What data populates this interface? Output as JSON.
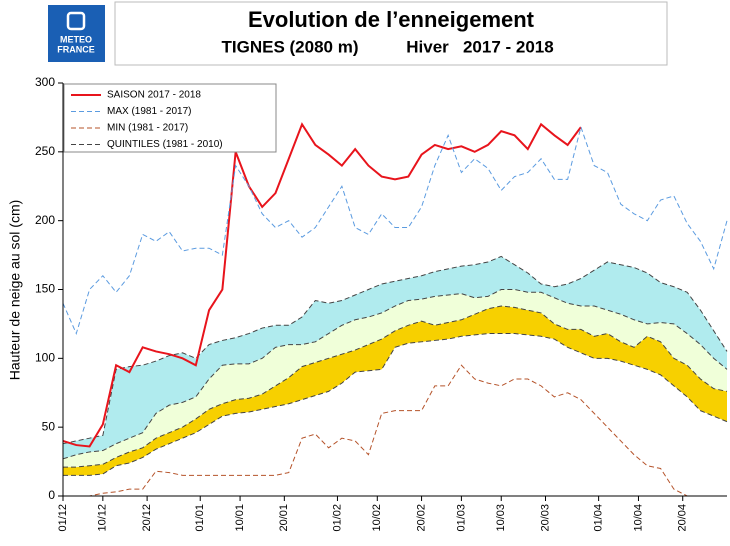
{
  "header": {
    "logo": [
      "METEO",
      "FRANCE"
    ]
  },
  "chart_data": {
    "type": "line",
    "title": "Evolution de l’enneigement",
    "subtitle": [
      "TIGNES (2080 m)",
      "Hiver   2017 - 2018"
    ],
    "ylabel": "Hauteur de neige au sol (cm)",
    "legend": "upper left",
    "xlim": [
      0,
      150
    ],
    "ylim": [
      0,
      300
    ],
    "yticks": [
      0,
      50,
      100,
      150,
      200,
      250,
      300
    ],
    "xticks": [
      {
        "value": 0,
        "label": "01/12"
      },
      {
        "value": 9,
        "label": "10/12"
      },
      {
        "value": 19,
        "label": "20/12"
      },
      {
        "value": 31,
        "label": "01/01"
      },
      {
        "value": 40,
        "label": "10/01"
      },
      {
        "value": 50,
        "label": "20/01"
      },
      {
        "value": 62,
        "label": "01/02"
      },
      {
        "value": 71,
        "label": "10/02"
      },
      {
        "value": 81,
        "label": "20/02"
      },
      {
        "value": 90,
        "label": "01/03"
      },
      {
        "value": 99,
        "label": "10/03"
      },
      {
        "value": 109,
        "label": "20/03"
      },
      {
        "value": 121,
        "label": "01/04"
      },
      {
        "value": 130,
        "label": "10/04"
      },
      {
        "value": 140,
        "label": "20/04"
      }
    ],
    "x": [
      0,
      3,
      6,
      9,
      12,
      15,
      18,
      21,
      24,
      27,
      30,
      33,
      36,
      39,
      42,
      45,
      48,
      51,
      54,
      57,
      60,
      63,
      66,
      69,
      72,
      75,
      78,
      81,
      84,
      87,
      90,
      93,
      96,
      99,
      102,
      105,
      108,
      111,
      114,
      117,
      120,
      123,
      126,
      129,
      132,
      135,
      138,
      141,
      144,
      147,
      150
    ],
    "series": [
      {
        "name": "SAISON 2017 - 2018",
        "color": "#e8141c",
        "dashed": false,
        "values": [
          40,
          37,
          36,
          52,
          95,
          90,
          108,
          105,
          103,
          100,
          95,
          135,
          150,
          250,
          225,
          210,
          220,
          245,
          270,
          255,
          248,
          240,
          252,
          240,
          232,
          230,
          232,
          248,
          255,
          252,
          254,
          250,
          255,
          265,
          262,
          252,
          270,
          262,
          255,
          268,
          null,
          null,
          null,
          null,
          null,
          null,
          null,
          null,
          null,
          null,
          null
        ]
      },
      {
        "name": "MAX (1981 - 2017)",
        "color": "#5b9be0",
        "dashed": true,
        "values": [
          140,
          118,
          150,
          160,
          148,
          160,
          190,
          185,
          192,
          178,
          180,
          180,
          175,
          240,
          225,
          205,
          195,
          200,
          188,
          195,
          210,
          225,
          195,
          190,
          205,
          195,
          195,
          210,
          240,
          262,
          235,
          245,
          238,
          222,
          232,
          235,
          245,
          230,
          230,
          268,
          240,
          235,
          212,
          205,
          200,
          215,
          218,
          198,
          185,
          165,
          200
        ]
      },
      {
        "name": "MIN (1981 - 2017)",
        "color": "#b5532a",
        "dashed": true,
        "values": [
          0,
          0,
          0,
          2,
          3,
          5,
          5,
          18,
          17,
          15,
          15,
          15,
          15,
          15,
          15,
          15,
          15,
          17,
          42,
          45,
          35,
          42,
          40,
          30,
          60,
          62,
          62,
          62,
          80,
          80,
          95,
          85,
          82,
          80,
          85,
          85,
          80,
          72,
          75,
          70,
          60,
          50,
          40,
          30,
          22,
          20,
          5,
          0,
          0,
          0,
          0
        ]
      },
      {
        "name": "QUINTILES (1981 - 2010)",
        "color": "#444444",
        "dashed": true,
        "fills": [
          "#f7d000",
          "#f0ffd9",
          "#b0ebee"
        ],
        "bands": [
          {
            "values": [
              15,
              15,
              15,
              16,
              22,
              24,
              28,
              34,
              38,
              42,
              46,
              52,
              58,
              60,
              61,
              63,
              65,
              67,
              70,
              73,
              76,
              82,
              90,
              91,
              92,
              108,
              111,
              112,
              113,
              114,
              116,
              117,
              118,
              118,
              118,
              117,
              116,
              114,
              108,
              104,
              100,
              100,
              98,
              95,
              92,
              88,
              80,
              72,
              62,
              58,
              54
            ]
          },
          {
            "values": [
              21,
              21,
              22,
              23,
              28,
              32,
              35,
              42,
              46,
              50,
              56,
              63,
              67,
              70,
              71,
              74,
              80,
              86,
              94,
              97,
              100,
              103,
              106,
              110,
              114,
              120,
              124,
              127,
              124,
              126,
              128,
              132,
              136,
              138,
              137,
              135,
              133,
              125,
              121,
              121,
              116,
              118,
              112,
              108,
              116,
              112,
              100,
              95,
              85,
              78,
              76
            ]
          },
          {
            "values": [
              27,
              30,
              32,
              33,
              38,
              42,
              46,
              60,
              66,
              68,
              72,
              85,
              95,
              96,
              96,
              100,
              108,
              110,
              110,
              112,
              118,
              124,
              128,
              130,
              133,
              138,
              142,
              143,
              145,
              146,
              147,
              144,
              145,
              150,
              150,
              148,
              148,
              144,
              140,
              138,
              138,
              135,
              132,
              128,
              125,
              126,
              125,
              118,
              110,
              100,
              92
            ]
          },
          {
            "values": [
              38,
              40,
              42,
              44,
              92,
              94,
              95,
              98,
              102,
              104,
              100,
              110,
              113,
              115,
              118,
              122,
              124,
              124,
              130,
              142,
              140,
              142,
              146,
              150,
              154,
              156,
              158,
              160,
              163,
              165,
              167,
              168,
              170,
              174,
              168,
              162,
              154,
              152,
              154,
              158,
              164,
              170,
              168,
              166,
              162,
              155,
              152,
              148,
              135,
              120,
              105
            ]
          }
        ]
      }
    ]
  }
}
